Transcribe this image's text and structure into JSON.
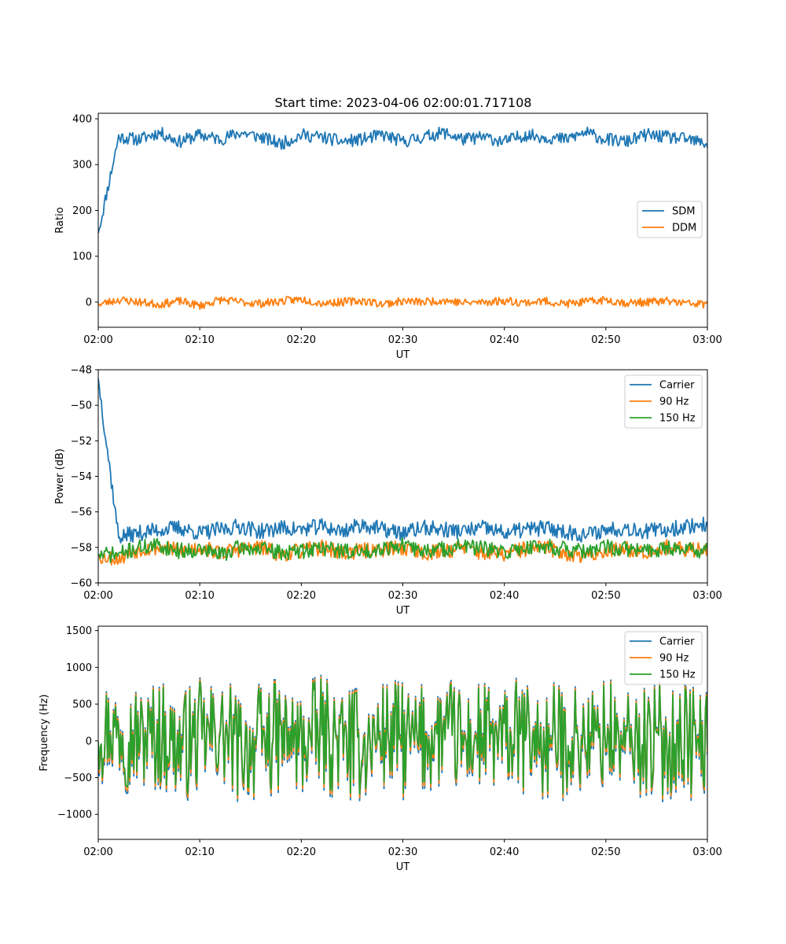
{
  "figure_title": "Start time: 2023-04-06 02:00:01.717108",
  "chart_data": [
    {
      "type": "line",
      "title": "Start time: 2023-04-06 02:00:01.717108",
      "xlabel": "UT",
      "ylabel": "Ratio",
      "xlim": [
        "02:00",
        "03:00"
      ],
      "x_ticks": [
        "02:00",
        "02:10",
        "02:20",
        "02:30",
        "02:40",
        "02:50",
        "03:00"
      ],
      "ylim": [
        -55,
        412
      ],
      "y_ticks": [
        0,
        100,
        200,
        300,
        400
      ],
      "y_tick_labels": [
        "0",
        "100",
        "200",
        "300",
        "400"
      ],
      "grid": false,
      "legend_position": "center-right",
      "series": [
        {
          "name": "SDM",
          "color": "#1f77b4",
          "profile": [
            150,
            360,
            355,
            370,
            350,
            365,
            355,
            370,
            360,
            345,
            365,
            360,
            350,
            355,
            365,
            350,
            360,
            370,
            355,
            360,
            350,
            365,
            360,
            355,
            370,
            355,
            350,
            365,
            360,
            355,
            345
          ],
          "noise": 14,
          "seed": 11
        },
        {
          "name": "DDM",
          "color": "#ff7f0e",
          "profile": [
            -5,
            5,
            0,
            -5,
            2,
            -8,
            5,
            0,
            -3,
            2,
            6,
            -2,
            0,
            3,
            -4,
            2,
            0,
            4,
            -2,
            0,
            3,
            -1,
            2,
            -4,
            0,
            5,
            -2,
            0,
            2,
            -3,
            -5
          ],
          "noise": 9,
          "seed": 23
        }
      ]
    },
    {
      "type": "line",
      "xlabel": "UT",
      "ylabel": "Power (dB)",
      "xlim": [
        "02:00",
        "03:00"
      ],
      "x_ticks": [
        "02:00",
        "02:10",
        "02:20",
        "02:30",
        "02:40",
        "02:50",
        "03:00"
      ],
      "ylim": [
        -60,
        -48
      ],
      "y_ticks": [
        -60,
        -58,
        -56,
        -54,
        -52,
        -50,
        -48
      ],
      "y_tick_labels": [
        "−60",
        "−58",
        "−56",
        "−54",
        "−52",
        "−50",
        "−48"
      ],
      "grid": false,
      "legend_position": "top-right",
      "series": [
        {
          "name": "Carrier",
          "color": "#1f77b4",
          "profile": [
            -48.5,
            -57.4,
            -57.2,
            -57.0,
            -56.9,
            -57.2,
            -57.0,
            -56.8,
            -57.1,
            -56.9,
            -57.0,
            -56.8,
            -57.1,
            -56.7,
            -57.0,
            -57.2,
            -56.9,
            -57.0,
            -57.1,
            -56.9,
            -57.2,
            -57.0,
            -56.9,
            -57.1,
            -57.3,
            -57.0,
            -56.9,
            -57.1,
            -57.0,
            -56.8,
            -56.7
          ],
          "noise": 0.45,
          "seed": 37
        },
        {
          "name": "90 Hz",
          "color": "#ff7f0e",
          "profile": [
            -58.5,
            -58.6,
            -58.1,
            -58.0,
            -58.2,
            -58.0,
            -58.3,
            -58.1,
            -58.0,
            -58.4,
            -58.2,
            -58.0,
            -58.3,
            -58.2,
            -58.1,
            -58.0,
            -58.3,
            -58.2,
            -58.0,
            -58.3,
            -58.4,
            -58.1,
            -58.0,
            -58.3,
            -58.5,
            -58.2,
            -58.1,
            -58.2,
            -58.0,
            -58.2,
            -58.0
          ],
          "noise": 0.45,
          "seed": 53
        },
        {
          "name": "150 Hz",
          "color": "#2ca02c",
          "profile": [
            -58.4,
            -58.4,
            -58.0,
            -57.9,
            -58.2,
            -58.1,
            -58.4,
            -58.0,
            -58.1,
            -58.3,
            -58.2,
            -58.0,
            -58.2,
            -58.3,
            -58.0,
            -57.9,
            -58.2,
            -58.1,
            -57.9,
            -58.1,
            -58.3,
            -58.0,
            -57.9,
            -58.1,
            -58.3,
            -58.0,
            -58.1,
            -58.2,
            -58.0,
            -58.1,
            -58.2
          ],
          "noise": 0.45,
          "seed": 71
        }
      ]
    },
    {
      "type": "line",
      "xlabel": "UT",
      "ylabel": "Frequency (Hz)",
      "xlim": [
        "02:00",
        "03:00"
      ],
      "x_ticks": [
        "02:00",
        "02:10",
        "02:20",
        "02:30",
        "02:40",
        "02:50",
        "03:00"
      ],
      "ylim": [
        -1340,
        1560
      ],
      "y_ticks": [
        -1000,
        -500,
        0,
        500,
        1000,
        1500
      ],
      "y_tick_labels": [
        "−1000",
        "−500",
        "0",
        "500",
        "1000",
        "1500"
      ],
      "grid": false,
      "legend_position": "top-right",
      "series": [
        {
          "name": "Carrier",
          "color": "#1f77b4",
          "offset": -90
        },
        {
          "name": "90 Hz",
          "color": "#ff7f0e",
          "offset": -50
        },
        {
          "name": "150 Hz",
          "color": "#2ca02c",
          "offset": 0
        }
      ],
      "base_profile": [
        200,
        150,
        50,
        100,
        -50,
        50,
        100,
        -80,
        0,
        60,
        -20,
        100,
        0,
        -50,
        80,
        20,
        0,
        150,
        -30,
        50,
        0,
        80,
        -60,
        40,
        0,
        100,
        -40,
        20,
        0,
        60,
        -100
      ],
      "noise": 420,
      "seed": 97
    }
  ]
}
